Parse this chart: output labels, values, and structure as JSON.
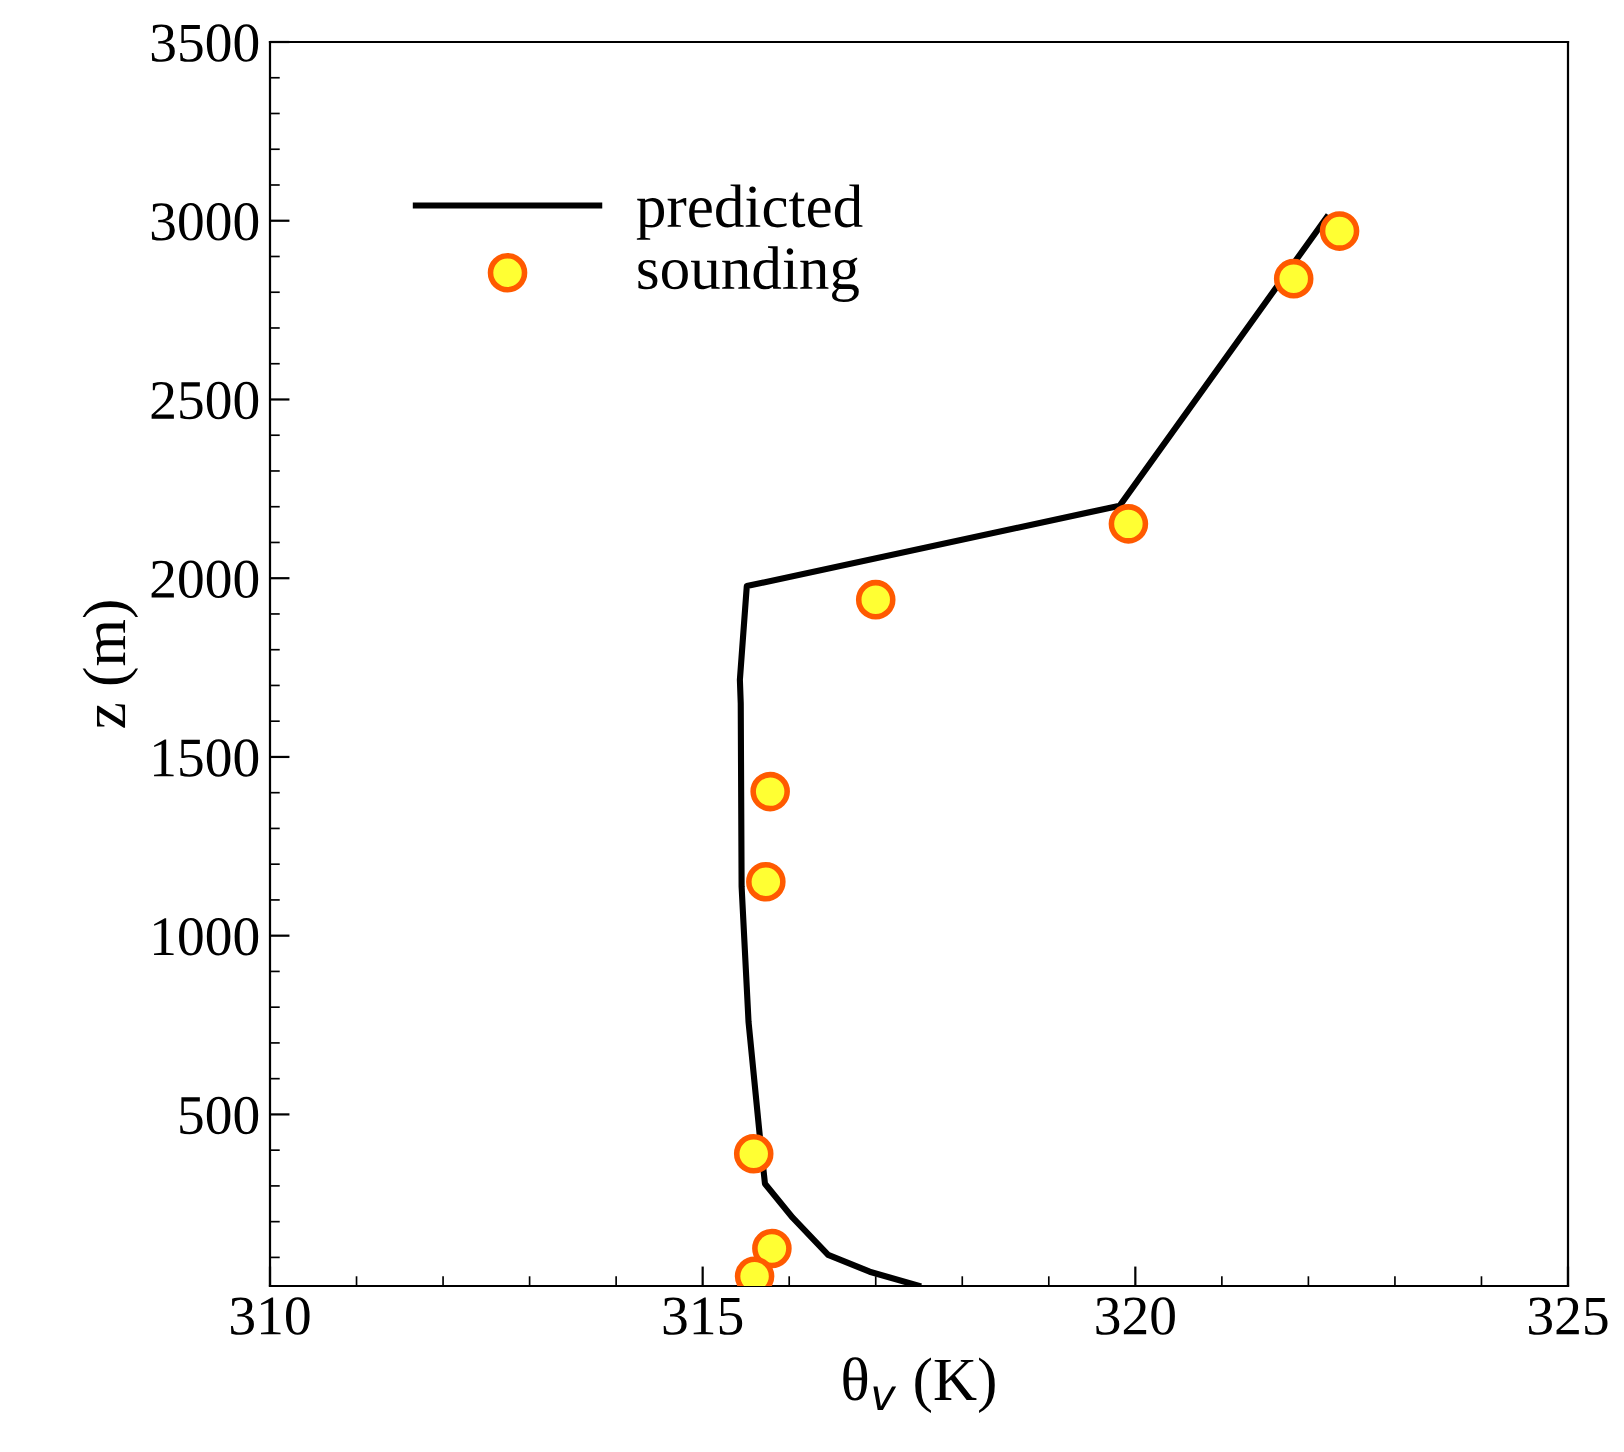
{
  "chart_data": {
    "type": "line",
    "xlabel": "θ$_{v}$ (K)",
    "ylabel": "z (m)",
    "xlim": [
      310,
      325
    ],
    "ylim": [
      20,
      3500
    ],
    "xticks": [
      310,
      315,
      320,
      325
    ],
    "yticks": [
      500,
      1000,
      1500,
      2000,
      2500,
      3000,
      3500
    ],
    "grid": false,
    "legend": "top left",
    "series": [
      {
        "name": "predicted",
        "color": "#000000",
        "marker": "none",
        "line_style": "solid",
        "x": [
          317.49,
          316.93,
          316.45,
          316.04,
          315.72,
          315.66,
          315.53,
          315.45,
          315.44,
          315.43,
          315.51,
          319.82,
          322.21
        ],
        "values": [
          21,
          60,
          107,
          211,
          306,
          440,
          759,
          1137,
          1650,
          1716,
          1978,
          2203,
          3009
        ]
      },
      {
        "name": "sounding",
        "type": "scatter",
        "color": "#ffff33",
        "marker": "circle",
        "x": [
          322.36,
          321.83,
          319.92,
          317.0,
          315.78,
          315.73,
          315.59,
          315.8,
          315.6
        ],
        "values": [
          2971,
          2838,
          2152,
          1940,
          1403,
          1151,
          390,
          125,
          47
        ]
      }
    ]
  }
}
